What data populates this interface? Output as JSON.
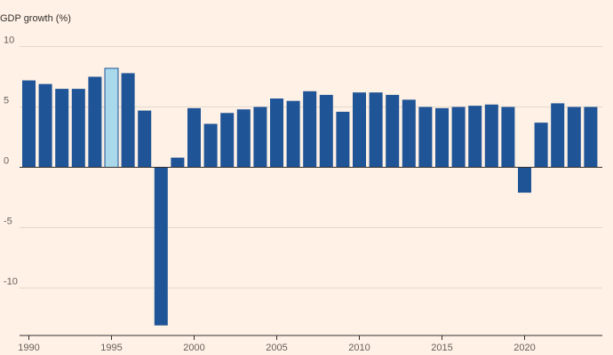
{
  "chart_data": {
    "type": "bar",
    "title": "",
    "ylabel": "GDP growth (%)",
    "xlabel": "",
    "ylim": [
      -14,
      10
    ],
    "yticks": [
      10,
      5,
      0,
      -5,
      -10
    ],
    "xticks": [
      1990,
      1995,
      2000,
      2005,
      2010,
      2015,
      2020
    ],
    "grid": true,
    "categories": [
      1990,
      1991,
      1992,
      1993,
      1994,
      1995,
      1996,
      1997,
      1998,
      1999,
      2000,
      2001,
      2002,
      2003,
      2004,
      2005,
      2006,
      2007,
      2008,
      2009,
      2010,
      2011,
      2012,
      2013,
      2014,
      2015,
      2016,
      2017,
      2018,
      2019,
      2020,
      2021,
      2022,
      2023,
      2024
    ],
    "values": [
      7.2,
      6.9,
      6.5,
      6.5,
      7.5,
      8.2,
      7.8,
      4.7,
      -13.1,
      0.8,
      4.9,
      3.6,
      4.5,
      4.8,
      5.0,
      5.7,
      5.5,
      6.3,
      6.0,
      4.6,
      6.2,
      6.2,
      6.0,
      5.6,
      5.0,
      4.9,
      5.0,
      5.1,
      5.2,
      5.0,
      -2.1,
      3.7,
      5.3,
      5.0,
      5.0
    ],
    "highlight": 1995,
    "colors": {
      "bar": "#1F5496",
      "highlight": "#A8D8EA",
      "highlight_outline": "#1F5496",
      "grid": "#E3D7CC",
      "axis": "#33302E",
      "background": "#FFF1E5"
    }
  }
}
